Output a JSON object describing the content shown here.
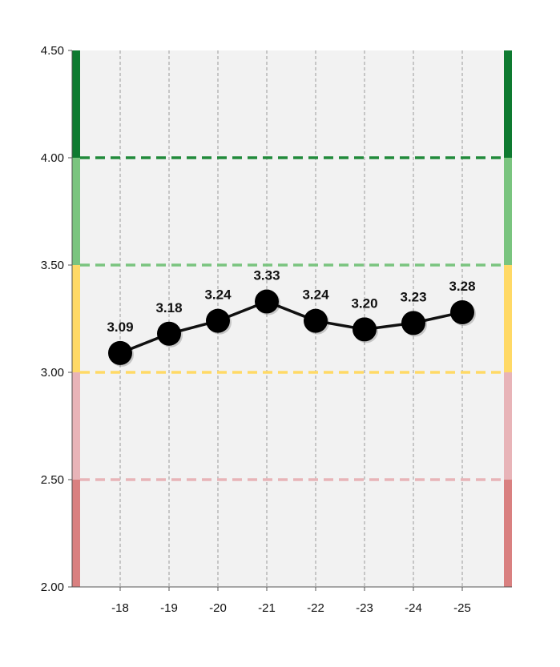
{
  "chart_data": {
    "type": "line",
    "categories": [
      "-18",
      "-19",
      "-20",
      "-21",
      "-22",
      "-23",
      "-24",
      "-25"
    ],
    "series": [
      {
        "values": [
          3.09,
          3.18,
          3.24,
          3.33,
          3.24,
          3.2,
          3.23,
          3.28
        ]
      }
    ],
    "data_labels": [
      "3.09",
      "3.18",
      "3.24",
      "3.33",
      "3.24",
      "3.20",
      "3.23",
      "3.28"
    ],
    "ylim": [
      2.0,
      4.5
    ],
    "yticks": [
      "2.00",
      "2.50",
      "3.00",
      "3.50",
      "4.00",
      "4.50"
    ],
    "ytick_values": [
      2.0,
      2.5,
      3.0,
      3.5,
      4.0,
      4.5
    ],
    "threshold_lines": [
      {
        "value": 2.5,
        "color": "#e8b4b8"
      },
      {
        "value": 3.0,
        "color": "#ffd966"
      },
      {
        "value": 3.5,
        "color": "#7ac47f"
      },
      {
        "value": 4.0,
        "color": "#218a3b"
      }
    ],
    "bands": [
      {
        "from": 2.0,
        "to": 2.5,
        "color": "#d98080"
      },
      {
        "from": 2.5,
        "to": 3.0,
        "color": "#e8b4b8"
      },
      {
        "from": 3.0,
        "to": 3.5,
        "color": "#ffd966"
      },
      {
        "from": 3.5,
        "to": 4.0,
        "color": "#7ac47f"
      },
      {
        "from": 4.0,
        "to": 4.5,
        "color": "#0e7a30"
      }
    ],
    "plot_background": "#f2f2f2",
    "grid": "vertical dashed",
    "line_color": "#111111",
    "marker_color": "#000000"
  }
}
